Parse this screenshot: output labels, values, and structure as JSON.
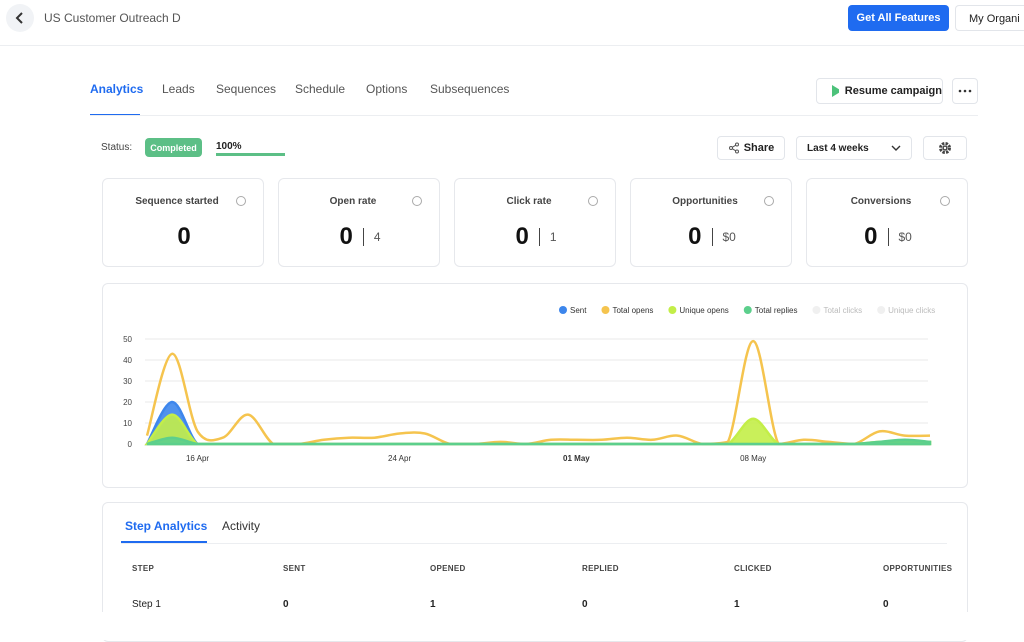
{
  "header": {
    "title": "US Customer Outreach D",
    "upgrade_button": "Get All Features",
    "organization_button": "My Organi"
  },
  "tabs": [
    "Analytics",
    "Leads",
    "Sequences",
    "Schedule",
    "Options",
    "Subsequences"
  ],
  "resume_button": "Resume campaign",
  "status": {
    "label": "Status:",
    "badge": "Completed",
    "progress": 100,
    "progress_label": "100%"
  },
  "share_button": "Share",
  "date_range": "Last 4 weeks",
  "cards": [
    {
      "title": "Sequence started",
      "value": 0
    },
    {
      "title": "Open rate",
      "value": 0,
      "secondary": 4
    },
    {
      "title": "Click rate",
      "value": 0,
      "secondary": 1
    },
    {
      "title": "Opportunities",
      "value": 0,
      "secondary": "$0"
    },
    {
      "title": "Conversions",
      "value": 0,
      "secondary": "$0"
    }
  ],
  "chart_data": {
    "type": "area",
    "categories": [
      null,
      null,
      "16 Apr",
      null,
      null,
      null,
      null,
      null,
      null,
      null,
      "24 Apr",
      null,
      null,
      null,
      null,
      null,
      null,
      "01 May",
      null,
      null,
      null,
      null,
      null,
      null,
      "08 May",
      null,
      null,
      null,
      null,
      null,
      null,
      null
    ],
    "ylim": [
      0,
      50
    ],
    "yticks": [
      0,
      10,
      20,
      30,
      40,
      50
    ],
    "grid": true,
    "legend": "top-right",
    "series": [
      {
        "name": "Sent",
        "color": "#3d86ec",
        "values": [
          0,
          20,
          0,
          0,
          0,
          0,
          0,
          0,
          0,
          0,
          0,
          0,
          0,
          0,
          0,
          0,
          0,
          0,
          0,
          0,
          0,
          0,
          0,
          0,
          0,
          0,
          0,
          0,
          0,
          0,
          0,
          0
        ]
      },
      {
        "name": "Total opens",
        "color": "#f5c44e",
        "fill": false,
        "values": [
          4,
          43,
          6,
          3,
          14,
          0,
          0,
          2,
          3,
          3,
          5,
          5,
          0,
          0,
          1,
          0,
          2,
          2,
          2,
          3,
          2,
          4,
          0,
          1,
          49,
          0,
          2,
          1,
          0,
          6,
          4,
          4
        ]
      },
      {
        "name": "Unique opens",
        "color": "#c3ee48",
        "values": [
          0,
          14,
          0,
          0,
          0,
          0,
          0,
          0,
          0,
          0,
          0,
          0,
          0,
          0,
          0,
          0,
          0,
          0,
          0,
          0,
          0,
          0,
          0,
          0,
          12,
          0,
          0,
          0,
          0,
          1,
          1,
          1
        ]
      },
      {
        "name": "Total replies",
        "color": "#5ccf8c",
        "values": [
          0,
          3,
          0,
          0,
          0,
          0,
          0,
          0,
          0,
          0,
          0,
          0,
          0,
          0,
          0,
          0,
          0,
          0,
          0,
          0,
          0,
          0,
          0,
          0,
          0,
          0,
          0,
          0,
          0,
          1,
          2,
          1
        ]
      },
      {
        "name": "Total clicks",
        "color": "#f0f0f0",
        "hidden": true
      },
      {
        "name": "Unique clicks",
        "color": "#f0f0f0",
        "hidden": true
      }
    ]
  },
  "step_tabs": [
    "Step Analytics",
    "Activity"
  ],
  "table": {
    "columns": [
      "STEP",
      "SENT",
      "OPENED",
      "REPLIED",
      "CLICKED",
      "OPPORTUNITIES"
    ],
    "rows": [
      [
        "Step 1",
        0,
        1,
        0,
        1,
        0
      ]
    ]
  }
}
